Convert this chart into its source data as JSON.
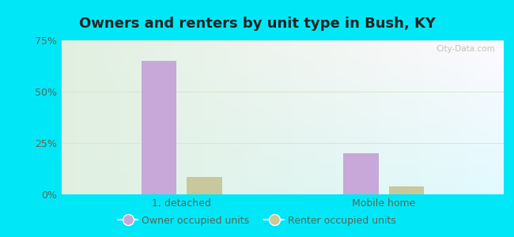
{
  "title": "Owners and renters by unit type in Bush, KY",
  "categories": [
    "1, detached",
    "Mobile home"
  ],
  "owner_values": [
    65.0,
    20.0
  ],
  "renter_values": [
    8.5,
    4.0
  ],
  "owner_color": "#c8a8d8",
  "renter_color": "#c8c89a",
  "owner_label": "Owner occupied units",
  "renter_label": "Renter occupied units",
  "ylim": [
    0,
    75
  ],
  "yticks": [
    0,
    25,
    50,
    75
  ],
  "ytick_labels": [
    "0%",
    "25%",
    "50%",
    "75%"
  ],
  "background_outer": "#00e8f8",
  "bar_width": 0.28,
  "title_fontsize": 13,
  "watermark": "City-Data.com",
  "grid_color": "#d8e8d0",
  "tick_color": "#556655"
}
